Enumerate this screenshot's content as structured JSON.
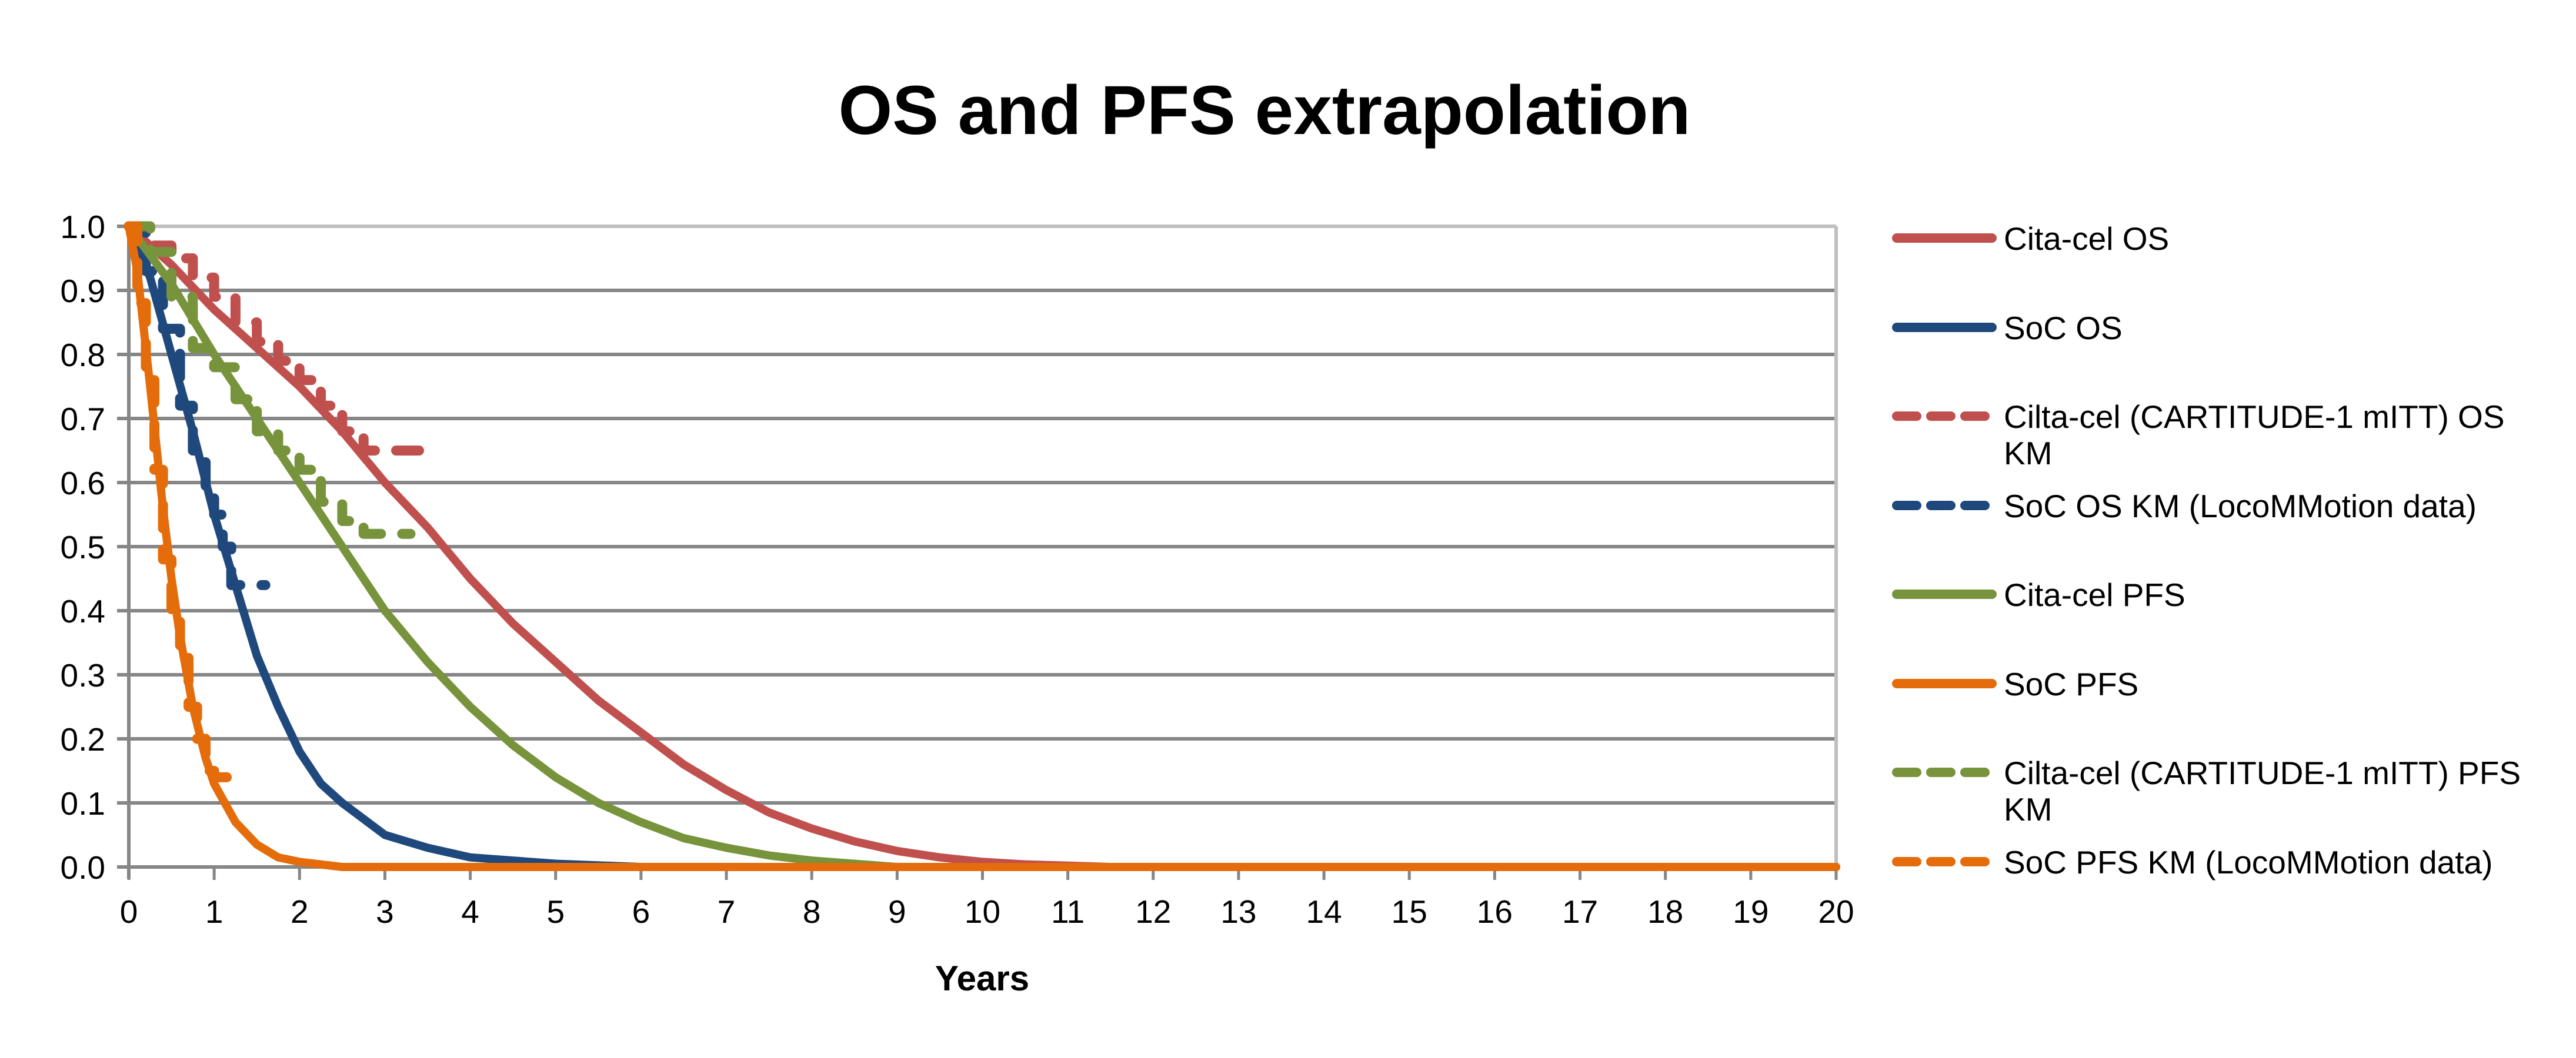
{
  "chart_data": {
    "type": "line",
    "title": "OS and PFS extrapolation",
    "xlabel": "Years",
    "ylabel": "",
    "xlim": [
      0,
      20
    ],
    "ylim": [
      0,
      1.0
    ],
    "x_ticks": [
      "0",
      "1",
      "2",
      "3",
      "4",
      "5",
      "6",
      "7",
      "8",
      "9",
      "10",
      "11",
      "12",
      "13",
      "14",
      "15",
      "16",
      "17",
      "18",
      "19",
      "20"
    ],
    "y_ticks": [
      "0.0",
      "0.1",
      "0.2",
      "0.3",
      "0.4",
      "0.5",
      "0.6",
      "0.7",
      "0.8",
      "0.9",
      "1.0"
    ],
    "grid": "horizontal",
    "legend_position": "right",
    "series": [
      {
        "name": "Cita-cel OS",
        "style": "solid",
        "color": "#c0504d",
        "x": [
          0,
          0.5,
          1,
          1.5,
          2,
          2.5,
          3,
          3.5,
          4,
          4.5,
          5,
          5.5,
          6,
          6.5,
          7,
          7.5,
          8,
          8.5,
          9,
          9.5,
          10,
          10.5,
          11,
          11.5,
          20
        ],
        "y": [
          1.0,
          0.94,
          0.87,
          0.81,
          0.75,
          0.68,
          0.6,
          0.53,
          0.45,
          0.38,
          0.32,
          0.26,
          0.21,
          0.16,
          0.12,
          0.085,
          0.06,
          0.04,
          0.025,
          0.015,
          0.008,
          0.004,
          0.002,
          0.0,
          0.0
        ]
      },
      {
        "name": "SoC OS",
        "style": "solid",
        "color": "#1f497d",
        "x": [
          0,
          0.25,
          0.5,
          0.75,
          1,
          1.25,
          1.5,
          1.75,
          2,
          2.25,
          2.5,
          3,
          3.5,
          4,
          4.5,
          5,
          6,
          20
        ],
        "y": [
          1.0,
          0.92,
          0.8,
          0.68,
          0.55,
          0.44,
          0.33,
          0.25,
          0.18,
          0.13,
          0.1,
          0.05,
          0.03,
          0.015,
          0.01,
          0.005,
          0.0,
          0.0
        ]
      },
      {
        "name": "Cilta-cel (CARTITUDE-1 mITT) OS KM",
        "style": "dashed",
        "color": "#c0504d",
        "x": [
          0,
          0.25,
          0.5,
          0.75,
          1,
          1.25,
          1.5,
          1.75,
          2,
          2.25,
          2.5,
          2.75,
          3.0,
          3.4
        ],
        "y": [
          1.0,
          0.97,
          0.95,
          0.92,
          0.89,
          0.85,
          0.82,
          0.79,
          0.76,
          0.72,
          0.68,
          0.65,
          0.65,
          0.65
        ]
      },
      {
        "name": "SoC OS KM (LocoMMotion data)",
        "style": "dashed",
        "color": "#1f497d",
        "x": [
          0,
          0.2,
          0.4,
          0.6,
          0.75,
          0.9,
          1.0,
          1.1,
          1.2,
          1.4,
          1.6
        ],
        "y": [
          1.0,
          0.93,
          0.84,
          0.72,
          0.65,
          0.58,
          0.55,
          0.5,
          0.44,
          0.44,
          0.44
        ]
      },
      {
        "name": "Cita-cel PFS",
        "style": "solid",
        "color": "#77933c",
        "x": [
          0,
          0.5,
          1,
          1.5,
          2,
          2.5,
          3,
          3.5,
          4,
          4.5,
          5,
          5.5,
          6,
          6.5,
          7,
          7.5,
          8,
          8.5,
          9,
          20
        ],
        "y": [
          1.0,
          0.91,
          0.8,
          0.7,
          0.6,
          0.5,
          0.4,
          0.32,
          0.25,
          0.19,
          0.14,
          0.1,
          0.07,
          0.045,
          0.03,
          0.018,
          0.01,
          0.005,
          0.0,
          0.0
        ]
      },
      {
        "name": "SoC PFS",
        "style": "solid",
        "color": "#e46c0a",
        "x": [
          0,
          0.1,
          0.25,
          0.4,
          0.5,
          0.6,
          0.75,
          0.9,
          1.0,
          1.25,
          1.5,
          1.75,
          2,
          2.5,
          20
        ],
        "y": [
          1.0,
          0.93,
          0.75,
          0.56,
          0.45,
          0.36,
          0.25,
          0.17,
          0.13,
          0.07,
          0.035,
          0.015,
          0.008,
          0.0,
          0.0
        ]
      },
      {
        "name": "Cilta-cel (CARTITUDE-1 mITT) PFS KM",
        "style": "dashed",
        "color": "#77933c",
        "x": [
          0,
          0.25,
          0.5,
          0.75,
          1,
          1.25,
          1.5,
          1.75,
          2,
          2.25,
          2.5,
          2.75,
          3.0,
          3.3
        ],
        "y": [
          1.0,
          0.96,
          0.89,
          0.81,
          0.78,
          0.73,
          0.68,
          0.65,
          0.62,
          0.57,
          0.54,
          0.52,
          0.52,
          0.52
        ]
      },
      {
        "name": "SoC PFS KM (LocoMMotion data)",
        "style": "dashed",
        "color": "#e46c0a",
        "x": [
          0,
          0.1,
          0.2,
          0.3,
          0.4,
          0.5,
          0.6,
          0.7,
          0.8,
          0.9,
          1.0,
          1.2
        ],
        "y": [
          1.0,
          0.88,
          0.76,
          0.62,
          0.48,
          0.4,
          0.33,
          0.25,
          0.2,
          0.15,
          0.14,
          0.14
        ]
      }
    ]
  },
  "legend": {
    "items": [
      {
        "label": "Cita-cel OS",
        "color": "#c0504d",
        "style": "solid"
      },
      {
        "label": "SoC OS",
        "color": "#1f497d",
        "style": "solid"
      },
      {
        "label": "Cilta-cel (CARTITUDE-1 mITT) OS KM",
        "color": "#c0504d",
        "style": "dashed"
      },
      {
        "label": "SoC OS KM (LocoMMotion data)",
        "color": "#1f497d",
        "style": "dashed"
      },
      {
        "label": "Cita-cel PFS",
        "color": "#77933c",
        "style": "solid"
      },
      {
        "label": "SoC PFS",
        "color": "#e46c0a",
        "style": "solid"
      },
      {
        "label": "Cilta-cel (CARTITUDE-1 mITT) PFS KM",
        "color": "#77933c",
        "style": "dashed"
      },
      {
        "label": "SoC PFS KM (LocoMMotion data)",
        "color": "#e46c0a",
        "style": "dashed"
      }
    ]
  },
  "colors": {
    "gridline": "#868686",
    "border": "#bfbfbf"
  }
}
